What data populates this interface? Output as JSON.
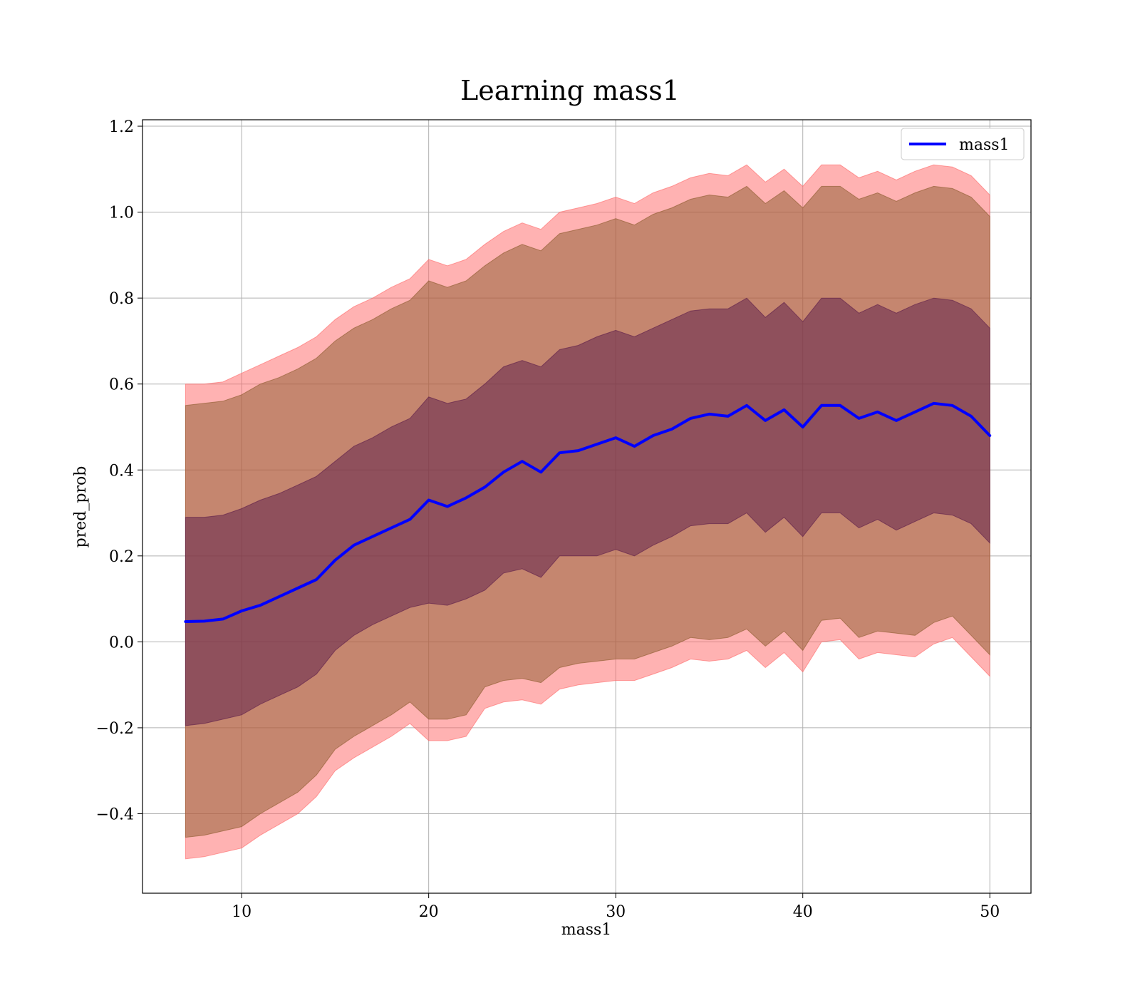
{
  "chart_data": {
    "type": "line",
    "title": "Learning mass1",
    "xlabel": "mass1",
    "ylabel": "pred_prob",
    "xlim": [
      4.7,
      52.2
    ],
    "ylim": [
      -0.585,
      1.215
    ],
    "xticks": [
      10,
      20,
      30,
      40,
      50
    ],
    "xtick_labels": [
      "10",
      "20",
      "30",
      "40",
      "50"
    ],
    "yticks": [
      -0.4,
      -0.2,
      0.0,
      0.2,
      0.4,
      0.6,
      0.8,
      1.0,
      1.2
    ],
    "ytick_labels": [
      "−0.4",
      "−0.2",
      "0.0",
      "0.2",
      "0.4",
      "0.6",
      "0.8",
      "1.0",
      "1.2"
    ],
    "grid": true,
    "legend": {
      "position": "top-right",
      "entries": [
        "mass1"
      ]
    },
    "x": [
      7.0,
      8.0,
      9.0,
      10.0,
      11.0,
      12.0,
      13.0,
      14.0,
      15.0,
      16.0,
      17.0,
      18.0,
      19.0,
      20.0,
      21.0,
      22.0,
      23.0,
      24.0,
      25.0,
      26.0,
      27.0,
      28.0,
      29.0,
      30.0,
      31.0,
      32.0,
      33.0,
      34.0,
      35.0,
      36.0,
      37.0,
      38.0,
      39.0,
      40.0,
      41.0,
      42.0,
      43.0,
      44.0,
      45.0,
      46.0,
      47.0,
      48.0,
      49.0,
      50.0
    ],
    "series": [
      {
        "name": "mass1",
        "color": "#0000ff",
        "values": [
          0.047,
          0.048,
          0.053,
          0.072,
          0.085,
          0.105,
          0.125,
          0.145,
          0.19,
          0.225,
          0.245,
          0.265,
          0.285,
          0.33,
          0.315,
          0.335,
          0.36,
          0.395,
          0.42,
          0.395,
          0.44,
          0.445,
          0.46,
          0.475,
          0.455,
          0.48,
          0.495,
          0.52,
          0.53,
          0.525,
          0.55,
          0.515,
          0.54,
          0.5,
          0.55,
          0.55,
          0.52,
          0.535,
          0.515,
          0.535,
          0.555,
          0.55,
          0.525,
          0.48
        ]
      }
    ],
    "bands": [
      {
        "name": "outer",
        "color": "#ff6666",
        "opacity": 0.5,
        "lower": [
          -0.505,
          -0.5,
          -0.49,
          -0.48,
          -0.45,
          -0.425,
          -0.4,
          -0.36,
          -0.3,
          -0.27,
          -0.245,
          -0.22,
          -0.19,
          -0.23,
          -0.23,
          -0.22,
          -0.155,
          -0.14,
          -0.135,
          -0.145,
          -0.11,
          -0.1,
          -0.095,
          -0.09,
          -0.09,
          -0.075,
          -0.06,
          -0.04,
          -0.045,
          -0.04,
          -0.02,
          -0.06,
          -0.025,
          -0.07,
          0.0,
          0.005,
          -0.04,
          -0.025,
          -0.03,
          -0.035,
          -0.005,
          0.01,
          -0.035,
          -0.08
        ],
        "upper": [
          0.6,
          0.6,
          0.605,
          0.625,
          0.645,
          0.665,
          0.685,
          0.71,
          0.75,
          0.78,
          0.8,
          0.825,
          0.845,
          0.89,
          0.875,
          0.89,
          0.925,
          0.955,
          0.975,
          0.96,
          1.0,
          1.01,
          1.02,
          1.035,
          1.02,
          1.045,
          1.06,
          1.08,
          1.09,
          1.085,
          1.11,
          1.07,
          1.1,
          1.06,
          1.11,
          1.11,
          1.08,
          1.095,
          1.075,
          1.095,
          1.11,
          1.105,
          1.085,
          1.04
        ]
      },
      {
        "name": "middle",
        "color": "#8b5a2b",
        "opacity": 0.5,
        "lower": [
          -0.455,
          -0.45,
          -0.44,
          -0.43,
          -0.4,
          -0.375,
          -0.35,
          -0.31,
          -0.25,
          -0.22,
          -0.195,
          -0.17,
          -0.14,
          -0.18,
          -0.18,
          -0.17,
          -0.105,
          -0.09,
          -0.085,
          -0.095,
          -0.06,
          -0.05,
          -0.045,
          -0.04,
          -0.04,
          -0.025,
          -0.01,
          0.01,
          0.005,
          0.01,
          0.03,
          -0.01,
          0.025,
          -0.02,
          0.05,
          0.055,
          0.01,
          0.025,
          0.02,
          0.015,
          0.045,
          0.06,
          0.015,
          -0.03
        ],
        "upper": [
          0.55,
          0.555,
          0.56,
          0.575,
          0.6,
          0.615,
          0.635,
          0.66,
          0.7,
          0.73,
          0.75,
          0.775,
          0.795,
          0.84,
          0.825,
          0.84,
          0.875,
          0.905,
          0.925,
          0.91,
          0.95,
          0.96,
          0.97,
          0.985,
          0.97,
          0.995,
          1.01,
          1.03,
          1.04,
          1.035,
          1.06,
          1.02,
          1.05,
          1.01,
          1.06,
          1.06,
          1.03,
          1.045,
          1.025,
          1.045,
          1.06,
          1.055,
          1.035,
          0.99
        ]
      },
      {
        "name": "inner",
        "color": "#5a1a4a",
        "opacity": 0.5,
        "lower": [
          -0.195,
          -0.19,
          -0.18,
          -0.17,
          -0.145,
          -0.125,
          -0.105,
          -0.075,
          -0.02,
          0.015,
          0.04,
          0.06,
          0.08,
          0.09,
          0.085,
          0.1,
          0.12,
          0.16,
          0.17,
          0.15,
          0.2,
          0.2,
          0.2,
          0.215,
          0.2,
          0.225,
          0.245,
          0.27,
          0.275,
          0.275,
          0.3,
          0.255,
          0.29,
          0.245,
          0.3,
          0.3,
          0.265,
          0.285,
          0.26,
          0.28,
          0.3,
          0.295,
          0.275,
          0.23
        ],
        "upper": [
          0.29,
          0.29,
          0.295,
          0.31,
          0.33,
          0.345,
          0.365,
          0.385,
          0.42,
          0.455,
          0.475,
          0.5,
          0.52,
          0.57,
          0.555,
          0.565,
          0.6,
          0.64,
          0.655,
          0.64,
          0.68,
          0.69,
          0.71,
          0.725,
          0.71,
          0.73,
          0.75,
          0.77,
          0.775,
          0.775,
          0.8,
          0.755,
          0.79,
          0.745,
          0.8,
          0.8,
          0.765,
          0.785,
          0.765,
          0.785,
          0.8,
          0.795,
          0.775,
          0.73
        ]
      }
    ]
  }
}
